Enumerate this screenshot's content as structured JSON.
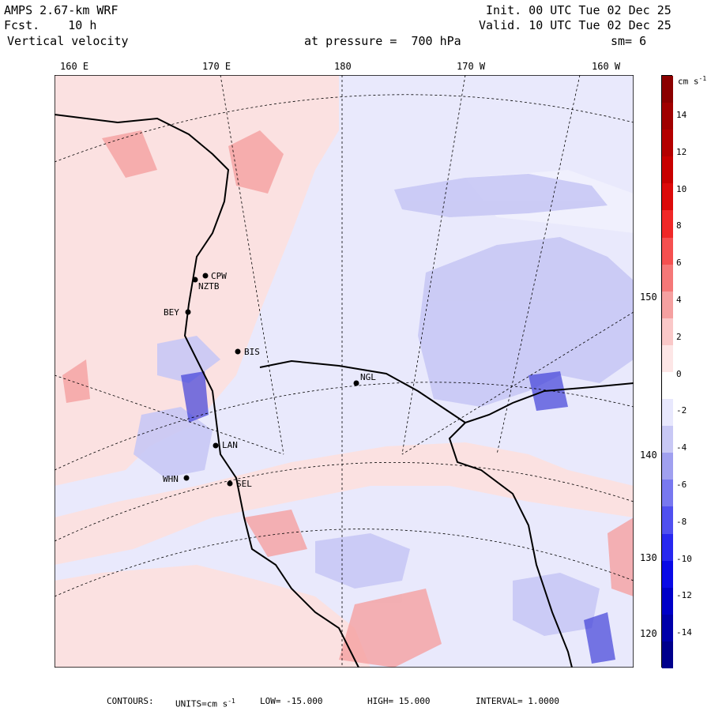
{
  "header": {
    "model": "AMPS 2.67-km WRF",
    "forecast": "Fcst.    10 h",
    "field": "Vertical velocity",
    "pressure": "at pressure =  700 hPa",
    "init": "Init. 00 UTC Tue 02 Dec 25",
    "valid": "Valid. 10 UTC Tue 02 Dec 25",
    "smoothing": "sm= 6"
  },
  "longitude_labels": [
    "160 E",
    "170 E",
    "180",
    "170 W",
    "160 W"
  ],
  "latitude_labels": [
    "150 W",
    "140 W",
    "130 W",
    "120 W"
  ],
  "stations": [
    {
      "label": "CPW"
    },
    {
      "label": "NZTB"
    },
    {
      "label": "BEY"
    },
    {
      "label": "BIS"
    },
    {
      "label": "NGL"
    },
    {
      "label": "LAN"
    },
    {
      "label": "WHN"
    },
    {
      "label": "SEL"
    }
  ],
  "colorbar": {
    "units": "cm s",
    "units_exp": "-1",
    "ticks": [
      "14",
      "12",
      "10",
      "8",
      "6",
      "4",
      "2",
      "0",
      "-2",
      "-4",
      "-6",
      "-8",
      "-10",
      "-12",
      "-14"
    ],
    "colors": [
      "#8b0000",
      "#a00000",
      "#b40000",
      "#c80000",
      "#dc0a0a",
      "#f02828",
      "#f55050",
      "#f57878",
      "#f5a0a0",
      "#fac8c8",
      "#fde6e6",
      "#ffffff",
      "#e8e8fd",
      "#c8c8f5",
      "#a0a0f0",
      "#7878f0",
      "#5050f0",
      "#2828f0",
      "#0a0ae6",
      "#0000c8",
      "#0000aa",
      "#00008c"
    ]
  },
  "footer": {
    "contours_label": "CONTOURS:",
    "units_label": "UNITS=cm s",
    "units_exp": "-1",
    "low": "LOW= -15.000",
    "high": "HIGH=  15.000",
    "interval": "INTERVAL=   1.0000"
  }
}
